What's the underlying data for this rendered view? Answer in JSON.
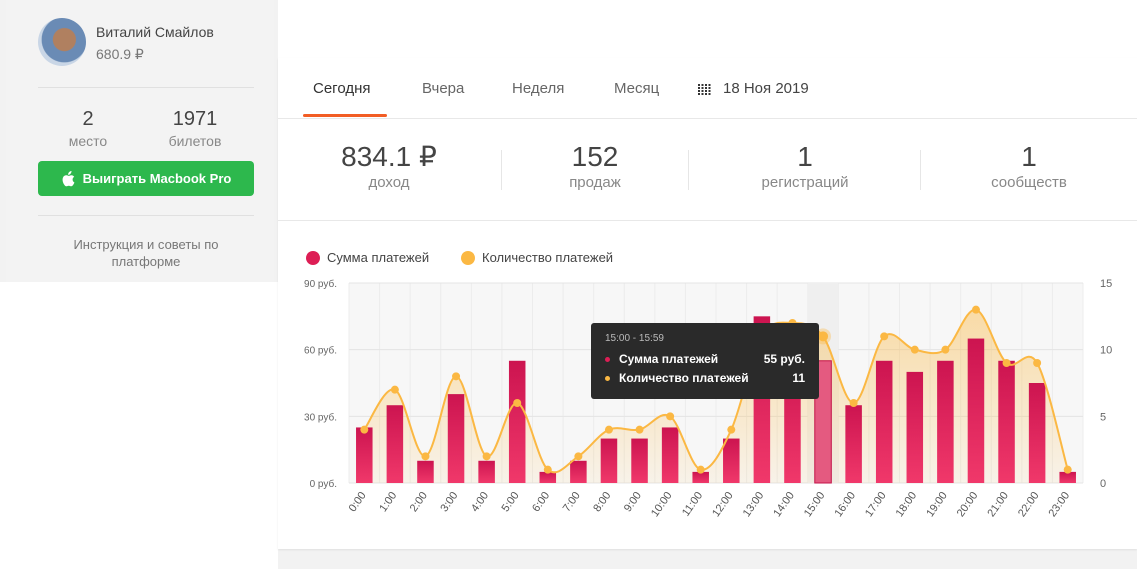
{
  "profile": {
    "name": "Виталий Смайлов",
    "balance": "680.9 ₽"
  },
  "sidebar_stats": [
    {
      "value": "2",
      "label": "место"
    },
    {
      "value": "1971",
      "label": "билетов"
    }
  ],
  "win_button": {
    "label": "Выиграть Macbook Pro",
    "icon": "apple-icon"
  },
  "instruction": "Инструкция и советы по платформе",
  "tabs": [
    {
      "label": "Сегодня",
      "active": true
    },
    {
      "label": "Вчера",
      "active": false
    },
    {
      "label": "Неделя",
      "active": false
    },
    {
      "label": "Месяц",
      "active": false
    }
  ],
  "date_picker": {
    "label": "18 Ноя 2019",
    "icon": "calendar-icon"
  },
  "metrics": [
    {
      "value": "834.1 ₽",
      "label": "доход"
    },
    {
      "value": "152",
      "label": "продаж"
    },
    {
      "value": "1",
      "label": "регистраций"
    },
    {
      "value": "1",
      "label": "сообществ"
    }
  ],
  "colors": {
    "accent": "#f25d24",
    "bar": "#dd1e55",
    "line": "#fbb843",
    "green": "#2db84d"
  },
  "chart_data": {
    "type": "bar",
    "categories": [
      "0:00",
      "1:00",
      "2:00",
      "3:00",
      "4:00",
      "5:00",
      "6:00",
      "7:00",
      "8:00",
      "9:00",
      "10:00",
      "11:00",
      "12:00",
      "13:00",
      "14:00",
      "15:00",
      "16:00",
      "17:00",
      "18:00",
      "19:00",
      "20:00",
      "21:00",
      "22:00",
      "23:00"
    ],
    "series": [
      {
        "name": "Сумма платежей",
        "type": "bar",
        "axis": "left",
        "values": [
          25,
          35,
          10,
          40,
          10,
          55,
          5,
          10,
          20,
          20,
          25,
          5,
          20,
          75,
          55,
          55,
          35,
          55,
          50,
          55,
          65,
          55,
          45,
          5
        ]
      },
      {
        "name": "Количество платежей",
        "type": "line",
        "axis": "right",
        "values": [
          4,
          7,
          2,
          8,
          2,
          6,
          1,
          2,
          4,
          4,
          5,
          1,
          4,
          11,
          12,
          11,
          6,
          11,
          10,
          10,
          13,
          9,
          9,
          1
        ]
      }
    ],
    "ylim_left": [
      0,
      90
    ],
    "ylim_right": [
      0,
      15
    ],
    "yticks_left": [
      "0 руб.",
      "30 руб.",
      "60 руб.",
      "90 руб."
    ],
    "yticks_right": [
      "0",
      "5",
      "10",
      "15"
    ],
    "grid": true,
    "legend": "top-left",
    "highlighted_index": 15
  },
  "tooltip": {
    "title": "15:00 - 15:59",
    "rows": [
      {
        "label": "Сумма платежей",
        "value": "55 руб."
      },
      {
        "label": "Количество платежей",
        "value": "11"
      }
    ]
  }
}
